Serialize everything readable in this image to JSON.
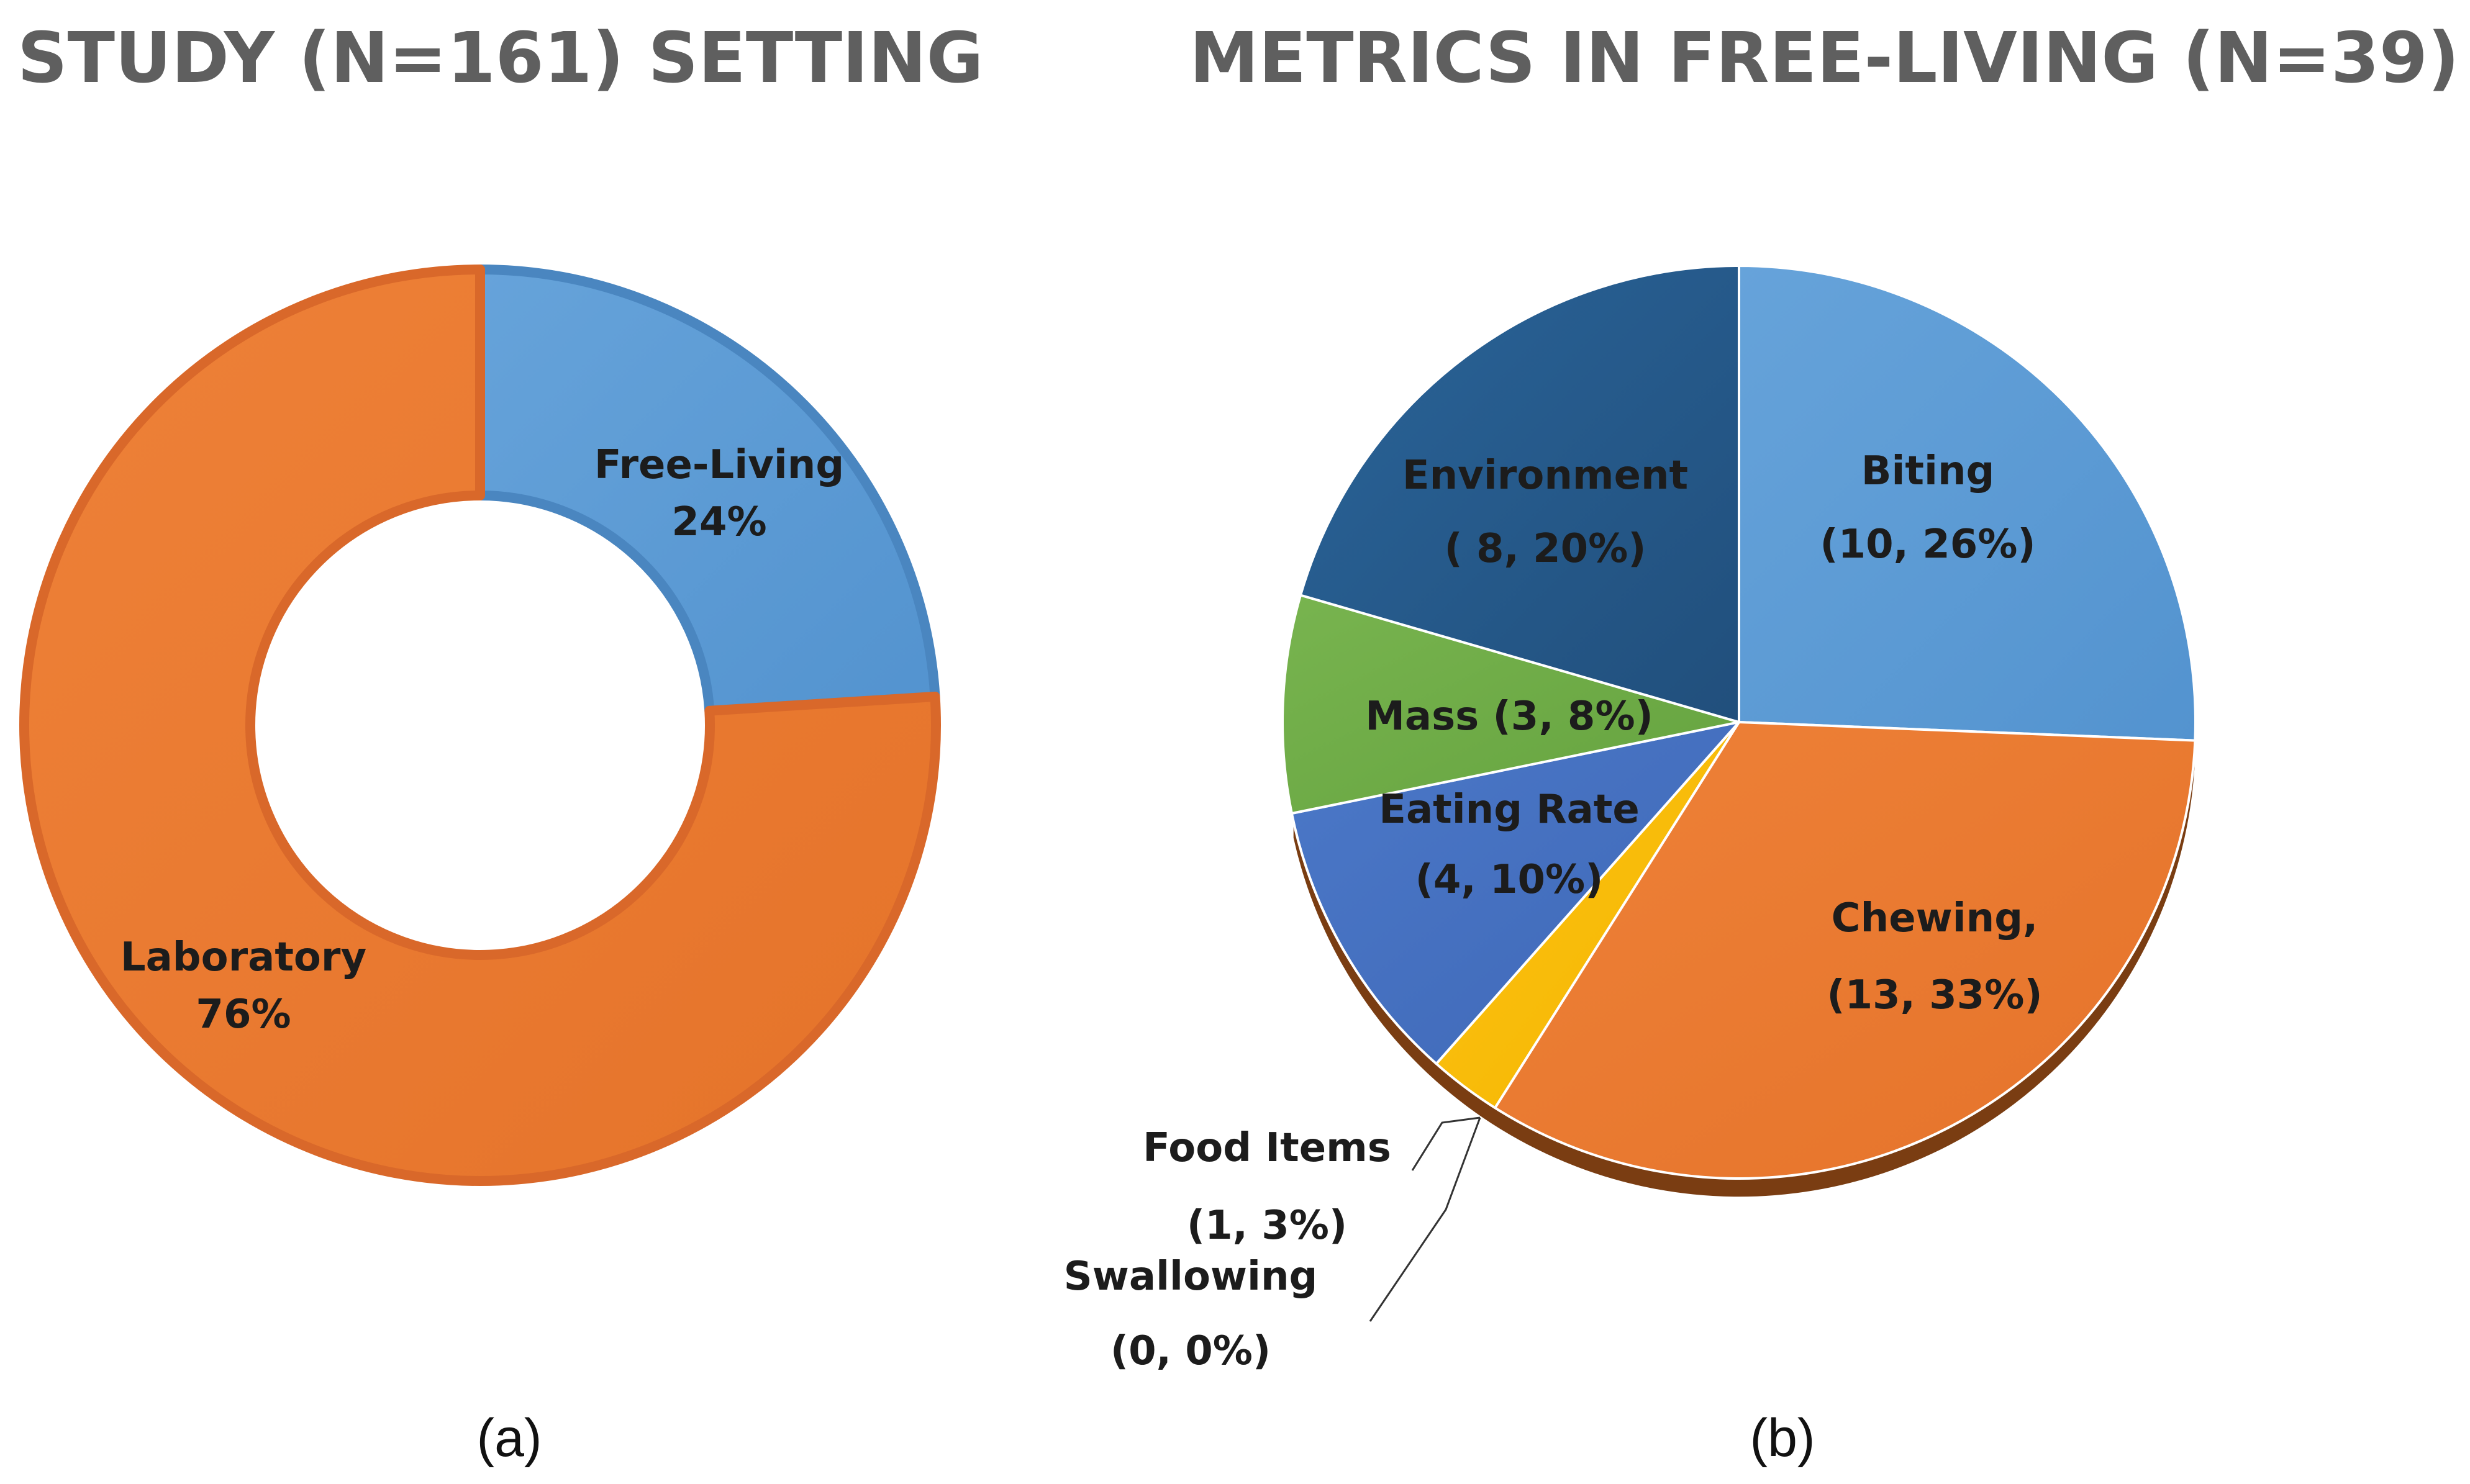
{
  "panels": [
    {
      "title": "STUDY (N=161) SETTING",
      "caption": "(a)"
    },
    {
      "title": "METRICS IN FREE-LIVING (N=39)",
      "caption": "(b)"
    }
  ],
  "chart_data": [
    {
      "type": "pie",
      "variant": "donut",
      "title": "STUDY (N=161) SETTING",
      "slices": [
        {
          "label": "Free-Living",
          "percent_label": "24%",
          "value": 24,
          "color": "#5B9BD5"
        },
        {
          "label": "Laboratory",
          "percent_label": "76%",
          "value": 76,
          "color": "#ED7D31"
        }
      ]
    },
    {
      "type": "pie",
      "title": "METRICS IN FREE-LIVING (N=39)",
      "slices": [
        {
          "label": "Biting",
          "count_label": "(10, 26%)",
          "value": 10,
          "percent": 26,
          "color": "#5B9BD5"
        },
        {
          "label": "Chewing,",
          "count_label": "(13, 33%)",
          "value": 13,
          "percent": 33,
          "color": "#ED7D31"
        },
        {
          "label": "Swallowing",
          "count_label": "(0, 0%)",
          "value": 0,
          "percent": 0,
          "color": "#A5A5A5"
        },
        {
          "label": "Food Items",
          "count_label": "(1, 3%)",
          "value": 1,
          "percent": 3,
          "color": "#FFC000"
        },
        {
          "label": "Eating Rate",
          "count_label": "(4, 10%)",
          "value": 4,
          "percent": 10,
          "color": "#4472C4"
        },
        {
          "label": "Mass (3, 8%)",
          "count_label": "",
          "value": 3,
          "percent": 8,
          "color": "#70AD47"
        },
        {
          "label": "Environment",
          "count_label": "( 8, 20%)",
          "value": 8,
          "percent": 20,
          "color": "#255E91"
        }
      ]
    }
  ]
}
